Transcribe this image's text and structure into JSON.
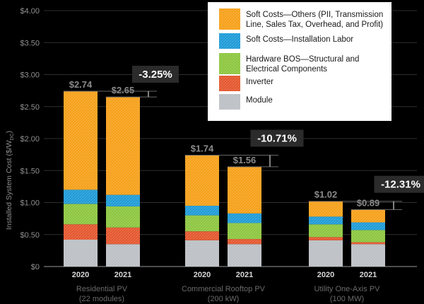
{
  "chart_data": {
    "type": "bar",
    "stacked": true,
    "ylabel": "Installed System Cost ($/W",
    "ylabel_sub": "DC",
    "ylabel_end": ")",
    "ylim": [
      0,
      4.0
    ],
    "y_ticks": [
      "$0",
      "$0.50",
      "$1.00",
      "$1.50",
      "$2.00",
      "$2.50",
      "$3.00",
      "$3.50",
      "$4.00"
    ],
    "groups": [
      {
        "name": "Residential PV",
        "sub": "(22 modules)",
        "years": [
          "2020",
          "2021"
        ],
        "totals": [
          "$2.74",
          "$2.65"
        ],
        "change": "-3.25%"
      },
      {
        "name": "Commercial Rooftop PV",
        "sub": "(200 kW)",
        "years": [
          "2020",
          "2021"
        ],
        "totals": [
          "$1.74",
          "$1.56"
        ],
        "change": "-10.71%"
      },
      {
        "name": "Utility One-Axis PV",
        "sub": "(100 MW)",
        "years": [
          "2020",
          "2021"
        ],
        "totals": [
          "$1.02",
          "$0.89"
        ],
        "change": "-12.31%"
      }
    ],
    "categories": [
      "Residential 2020",
      "Residential 2021",
      "Commercial 2020",
      "Commercial 2021",
      "Utility 2020",
      "Utility 2021"
    ],
    "series": [
      {
        "name": "Module",
        "color": "#bcc0c4",
        "values": [
          0.42,
          0.35,
          0.41,
          0.35,
          0.41,
          0.35
        ]
      },
      {
        "name": "Inverter",
        "color": "#e4572e",
        "values": [
          0.24,
          0.26,
          0.14,
          0.08,
          0.05,
          0.03
        ]
      },
      {
        "name": "Hardware BOS—Structural and Electrical Components",
        "color": "#8cc63f",
        "values": [
          0.32,
          0.33,
          0.25,
          0.25,
          0.2,
          0.19
        ]
      },
      {
        "name": "Soft Costs—Installation Labor",
        "color": "#1f9bd7",
        "values": [
          0.22,
          0.18,
          0.15,
          0.15,
          0.12,
          0.12
        ]
      },
      {
        "name": "Soft Costs—Others (PII, Transmission Line, Sales Tax, Overhead, and Profit)",
        "color": "#f6a019",
        "values": [
          1.54,
          1.53,
          0.79,
          0.73,
          0.24,
          0.2
        ]
      }
    ],
    "legend_order": [
      {
        "lines": [
          "Soft Costs—Others (PII, Transmission",
          "Line, Sales Tax, Overhead, and Profit)"
        ],
        "color": "#f6a019"
      },
      {
        "lines": [
          "Soft Costs—Installation Labor"
        ],
        "color": "#1f9bd7"
      },
      {
        "lines": [
          "Hardware BOS—Structural and",
          "Electrical Components"
        ],
        "color": "#8cc63f"
      },
      {
        "lines": [
          "Inverter"
        ],
        "color": "#e4572e"
      },
      {
        "lines": [
          "Module"
        ],
        "color": "#bcc0c4"
      }
    ],
    "legend_position": "top-right",
    "grid": true
  }
}
